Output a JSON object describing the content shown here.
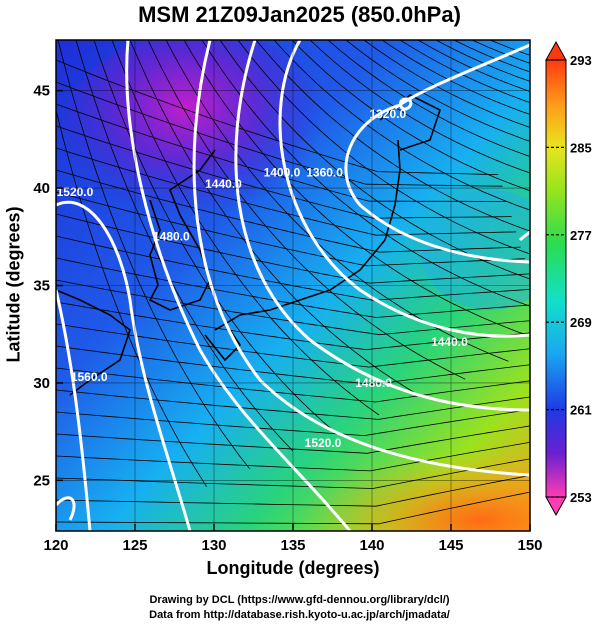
{
  "title": "MSM 21Z09Jan2025 (850.0hPa)",
  "axes": {
    "xlabel": "Longitude (degrees)",
    "ylabel": "Latitude  (degrees)",
    "x_ticks": [
      "120",
      "125",
      "130",
      "135",
      "140",
      "145",
      "150"
    ],
    "y_ticks": [
      "25",
      "30",
      "35",
      "40",
      "45"
    ],
    "x_range": [
      120,
      150
    ],
    "y_range": [
      22.4,
      47.6
    ]
  },
  "colorbar": {
    "ticks": [
      "293",
      "285",
      "277",
      "269",
      "261",
      "253"
    ],
    "range": [
      253,
      293
    ],
    "colors": [
      "#ff3db4",
      "#c01fd6",
      "#5a1fd0",
      "#1e30e0",
      "#1f6ef0",
      "#19b4f0",
      "#11e0c8",
      "#2ae05a",
      "#8ce61e",
      "#e8e61e",
      "#ffa81e",
      "#ff4a10"
    ]
  },
  "contour_labels": [
    {
      "text": "1320.0",
      "lon": 141.0,
      "lat": 43.6
    },
    {
      "text": "1360.0",
      "lon": 137.0,
      "lat": 40.6
    },
    {
      "text": "1400.0",
      "lon": 134.3,
      "lat": 40.6
    },
    {
      "text": "1440.0",
      "lon": 130.6,
      "lat": 40.0
    },
    {
      "text": "1480.0",
      "lon": 127.3,
      "lat": 37.3
    },
    {
      "text": "1520.0",
      "lon": 121.2,
      "lat": 39.6
    },
    {
      "text": "1440.0",
      "lon": 144.9,
      "lat": 31.9
    },
    {
      "text": "1480.0",
      "lon": 140.1,
      "lat": 29.8
    },
    {
      "text": "1520.0",
      "lon": 136.9,
      "lat": 26.7
    },
    {
      "text": "1560.0",
      "lon": 122.1,
      "lat": 30.1
    }
  ],
  "credits": {
    "line1": "Drawing by DCL (https://www.gfd-dennou.org/library/dcl/)",
    "line2": "Data from http://database.rish.kyoto-u.ac.jp/arch/jmadata/"
  }
}
